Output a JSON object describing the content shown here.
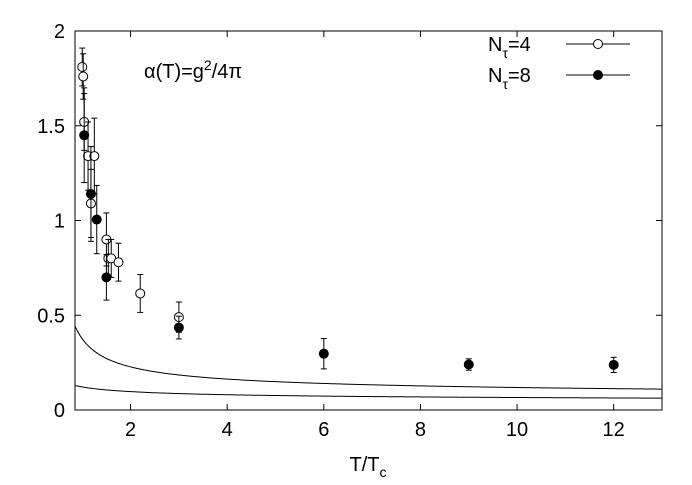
{
  "chart_data": {
    "type": "scatter",
    "annotation": "α(T)=g²/4π",
    "annotation_parts": {
      "pre": "α(T)=g",
      "sup": "2",
      "post": "/4π"
    },
    "xlabel": "T/T",
    "xlabel_sub": "c",
    "ylabel": "",
    "xlim": [
      0.85,
      13
    ],
    "ylim": [
      0,
      2
    ],
    "x_ticks": [
      2,
      4,
      6,
      8,
      10,
      12
    ],
    "y_ticks": [
      0,
      0.5,
      1,
      1.5,
      2
    ],
    "x_tick_labels": [
      "2",
      "4",
      "6",
      "8",
      "10",
      "12"
    ],
    "y_tick_labels": [
      "0",
      "0.5",
      "1",
      "1.5",
      "2"
    ],
    "grid": false,
    "legend_position": "top-right",
    "series": [
      {
        "name": "Nτ=4",
        "name_parts": {
          "main": "N",
          "sub": "τ",
          "post": "=4"
        },
        "marker": "open-circle",
        "points": [
          {
            "x": 1.0,
            "y": 1.81,
            "err": 0.1
          },
          {
            "x": 1.02,
            "y": 1.76,
            "err": 0.12
          },
          {
            "x": 1.04,
            "y": 1.52,
            "err": 0.15
          },
          {
            "x": 1.12,
            "y": 1.34,
            "err": 0.18
          },
          {
            "x": 1.25,
            "y": 1.34,
            "err": 0.2
          },
          {
            "x": 1.18,
            "y": 1.09,
            "err": 0.18
          },
          {
            "x": 1.5,
            "y": 0.9,
            "err": 0.14
          },
          {
            "x": 1.54,
            "y": 0.8,
            "err": 0.1
          },
          {
            "x": 1.6,
            "y": 0.8,
            "err": 0.1
          },
          {
            "x": 1.75,
            "y": 0.78,
            "err": 0.1
          },
          {
            "x": 2.2,
            "y": 0.615,
            "err": 0.1
          },
          {
            "x": 3.0,
            "y": 0.49,
            "err": 0.08
          }
        ]
      },
      {
        "name": "Nτ=8",
        "name_parts": {
          "main": "N",
          "sub": "τ",
          "post": "=8"
        },
        "marker": "filled-circle",
        "points": [
          {
            "x": 1.04,
            "y": 1.45,
            "err": 0.25
          },
          {
            "x": 1.18,
            "y": 1.14,
            "err": 0.25
          },
          {
            "x": 1.3,
            "y": 1.005,
            "err": 0.18
          },
          {
            "x": 1.5,
            "y": 0.7,
            "err": 0.12
          },
          {
            "x": 3.0,
            "y": 0.435,
            "err": 0.06
          },
          {
            "x": 6.0,
            "y": 0.297,
            "err": 0.08
          },
          {
            "x": 9.0,
            "y": 0.24,
            "err": 0.03
          },
          {
            "x": 12.0,
            "y": 0.238,
            "err": 0.04
          }
        ]
      }
    ],
    "curves": [
      {
        "form": "a/ln(b*x)",
        "a": 0.4,
        "b": 2.9
      },
      {
        "form": "a/ln(b*x)",
        "a": 0.33,
        "b": 15.0
      }
    ]
  }
}
